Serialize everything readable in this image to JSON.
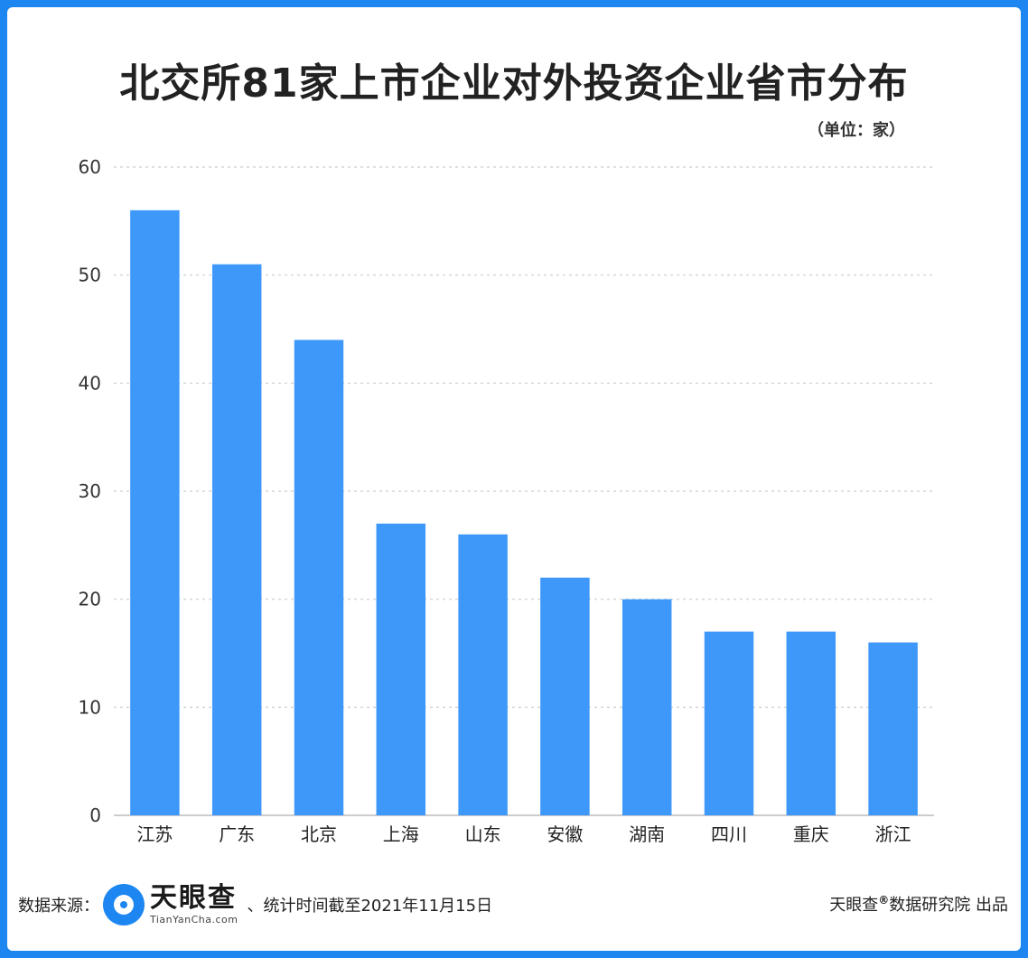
{
  "chart_data": {
    "type": "bar",
    "title": "北交所81家上市企业对外投资企业省市分布",
    "unit_label": "（单位：家）",
    "categories": [
      "江苏",
      "广东",
      "北京",
      "上海",
      "山东",
      "安徽",
      "湖南",
      "四川",
      "重庆",
      "浙江"
    ],
    "values": [
      56,
      51,
      44,
      27,
      26,
      22,
      20,
      17,
      17,
      16
    ],
    "ylim": [
      0,
      60
    ],
    "yticks": [
      0,
      10,
      20,
      30,
      40,
      50,
      60
    ],
    "grid": true,
    "bar_color": "#3d98fa",
    "grid_color": "#d6d6d6"
  },
  "footer": {
    "source_label": "数据来源：",
    "logo_cn": "天眼查",
    "logo_en": "TianYanCha.com",
    "stat_note": "、统计时间截至2021年11月15日",
    "credit_brand": "天眼查",
    "credit_mark": "®",
    "credit_rest": "数据研究院 出品"
  },
  "colors": {
    "frame": "#1e86f0",
    "background": "#ffffff"
  }
}
